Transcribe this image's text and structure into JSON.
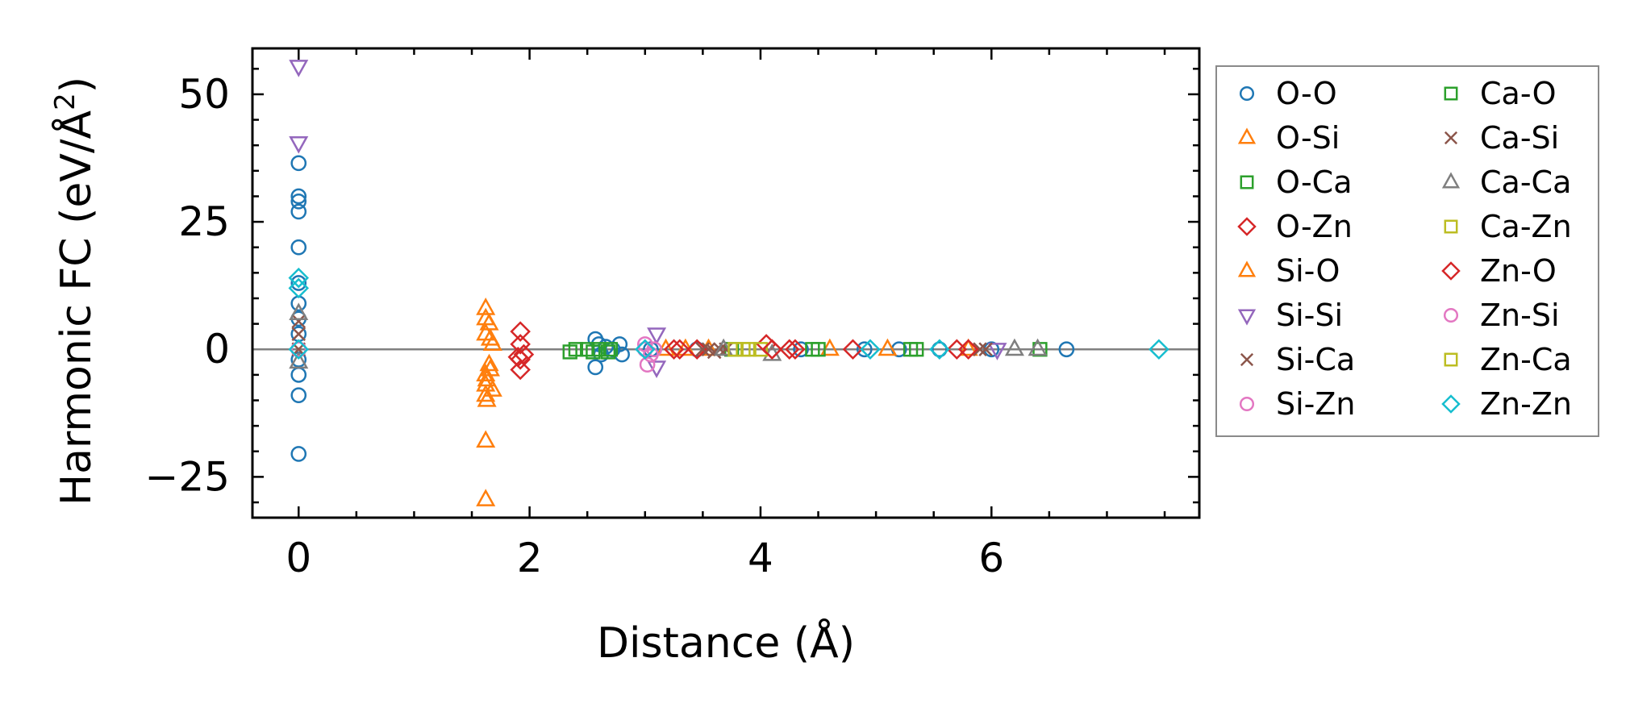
{
  "chart_data": {
    "type": "scatter",
    "xlabel": "Distance (Å)",
    "ylabel_main": "Harmonic FC (eV/Å",
    "ylabel_sup": "2",
    "ylabel_end": ")",
    "xlim": [
      -0.4,
      7.8
    ],
    "ylim": [
      -33,
      59
    ],
    "xticks": [
      0,
      2,
      4,
      6
    ],
    "xtick_labels": [
      "0",
      "2",
      "4",
      "6"
    ],
    "yticks": [
      -25,
      0,
      25,
      50
    ],
    "ytick_labels": [
      "−25",
      "0",
      "25",
      "50"
    ],
    "zero_line": true,
    "legend_position": "outside-right",
    "series": [
      {
        "name": "O-O",
        "marker": "circle",
        "color": "#1f77b4",
        "points": [
          [
            0,
            36.5
          ],
          [
            0,
            30
          ],
          [
            0,
            29
          ],
          [
            0,
            27
          ],
          [
            0,
            20
          ],
          [
            0,
            13
          ],
          [
            0,
            9
          ],
          [
            0,
            6
          ],
          [
            0,
            3
          ],
          [
            0,
            0
          ],
          [
            0,
            -2
          ],
          [
            0,
            -5
          ],
          [
            0,
            -9
          ],
          [
            0,
            -20.5
          ],
          [
            2.57,
            2
          ],
          [
            2.57,
            -3.5
          ],
          [
            2.6,
            1
          ],
          [
            2.62,
            -1
          ],
          [
            2.66,
            0.5
          ],
          [
            2.72,
            0
          ],
          [
            2.78,
            1
          ],
          [
            2.8,
            -1
          ],
          [
            3.05,
            0
          ],
          [
            3.45,
            0
          ],
          [
            4.35,
            0
          ],
          [
            4.9,
            0
          ],
          [
            5.2,
            0
          ],
          [
            5.55,
            0
          ],
          [
            6.0,
            0
          ],
          [
            6.65,
            0
          ]
        ]
      },
      {
        "name": "O-Si",
        "marker": "triangle-up",
        "color": "#ff7f0e",
        "points": [
          [
            1.62,
            8
          ],
          [
            1.62,
            6
          ],
          [
            1.62,
            3
          ],
          [
            1.62,
            -5
          ],
          [
            1.62,
            -7
          ],
          [
            1.62,
            -9
          ],
          [
            1.62,
            -18
          ],
          [
            1.62,
            -29.5
          ],
          [
            1.65,
            5
          ],
          [
            1.65,
            -3
          ],
          [
            1.68,
            1
          ],
          [
            1.68,
            -8
          ],
          [
            3.18,
            0
          ],
          [
            3.35,
            0
          ],
          [
            3.55,
            0
          ],
          [
            4.6,
            0
          ],
          [
            5.1,
            0
          ],
          [
            5.8,
            0
          ]
        ]
      },
      {
        "name": "O-Ca",
        "marker": "square",
        "color": "#2ca02c",
        "points": [
          [
            2.35,
            -0.5
          ],
          [
            2.5,
            0
          ],
          [
            2.6,
            0
          ],
          [
            2.68,
            -0.5
          ],
          [
            3.75,
            0
          ],
          [
            4.5,
            0
          ],
          [
            5.3,
            0
          ]
        ]
      },
      {
        "name": "O-Zn",
        "marker": "diamond",
        "color": "#d62728",
        "points": [
          [
            1.92,
            3.5
          ],
          [
            1.92,
            1
          ],
          [
            1.92,
            -2
          ],
          [
            1.92,
            -4
          ],
          [
            1.95,
            -1
          ],
          [
            3.25,
            0
          ],
          [
            3.45,
            0
          ],
          [
            4.05,
            1
          ],
          [
            4.1,
            0
          ],
          [
            4.25,
            0
          ],
          [
            4.8,
            0
          ],
          [
            5.7,
            0
          ]
        ]
      },
      {
        "name": "Si-O",
        "marker": "triangle-up",
        "color": "#ff7f0e",
        "points": [
          [
            1.63,
            -6
          ],
          [
            1.63,
            -10
          ],
          [
            1.66,
            2
          ],
          [
            1.66,
            -4
          ]
        ]
      },
      {
        "name": "Si-Si",
        "marker": "triangle-down",
        "color": "#9467bd",
        "points": [
          [
            0,
            55.5
          ],
          [
            0,
            40.5
          ],
          [
            3.1,
            3
          ],
          [
            3.1,
            -3.5
          ],
          [
            6.05,
            0
          ]
        ]
      },
      {
        "name": "Si-Ca",
        "marker": "x",
        "color": "#8c564b",
        "points": [
          [
            0,
            3
          ],
          [
            0,
            0
          ],
          [
            3.55,
            0
          ],
          [
            3.65,
            0
          ],
          [
            3.7,
            0
          ],
          [
            5.9,
            0
          ]
        ]
      },
      {
        "name": "Si-Zn",
        "marker": "circle",
        "color": "#e377c2",
        "points": [
          [
            3.0,
            0
          ],
          [
            3.02,
            -3
          ],
          [
            3.08,
            0
          ]
        ]
      },
      {
        "name": "Ca-O",
        "marker": "square",
        "color": "#2ca02c",
        "points": [
          [
            2.4,
            0
          ],
          [
            2.55,
            -0.5
          ],
          [
            2.7,
            0
          ],
          [
            4.45,
            0
          ],
          [
            5.35,
            0
          ],
          [
            6.42,
            0
          ]
        ]
      },
      {
        "name": "Ca-Si",
        "marker": "x",
        "color": "#8c564b",
        "points": [
          [
            0,
            5.5
          ],
          [
            3.5,
            0
          ],
          [
            3.6,
            -0.5
          ],
          [
            5.95,
            0
          ]
        ]
      },
      {
        "name": "Ca-Ca",
        "marker": "triangle-up",
        "color": "#7f7f7f",
        "points": [
          [
            0,
            7
          ],
          [
            0,
            -2.5
          ],
          [
            3.68,
            0
          ],
          [
            4.1,
            -1
          ],
          [
            6.2,
            0
          ],
          [
            6.4,
            0
          ]
        ]
      },
      {
        "name": "Ca-Zn",
        "marker": "square",
        "color": "#bcbd22",
        "points": [
          [
            3.85,
            0
          ],
          [
            4.0,
            0
          ]
        ]
      },
      {
        "name": "Zn-O",
        "marker": "diamond",
        "color": "#d62728",
        "points": [
          [
            1.9,
            -1.5
          ],
          [
            3.3,
            0
          ],
          [
            4.1,
            0
          ],
          [
            4.3,
            0
          ],
          [
            5.8,
            0
          ]
        ]
      },
      {
        "name": "Zn-Si",
        "marker": "circle",
        "color": "#e377c2",
        "points": [
          [
            0,
            0
          ],
          [
            3.0,
            1
          ],
          [
            3.05,
            -1
          ]
        ]
      },
      {
        "name": "Zn-Ca",
        "marker": "square",
        "color": "#bcbd22",
        "points": [
          [
            3.78,
            0
          ],
          [
            3.9,
            0
          ]
        ]
      },
      {
        "name": "Zn-Zn",
        "marker": "diamond",
        "color": "#17becf",
        "points": [
          [
            0,
            14
          ],
          [
            0,
            12
          ],
          [
            0,
            0
          ],
          [
            3.0,
            0
          ],
          [
            4.95,
            0
          ],
          [
            5.55,
            0
          ],
          [
            7.45,
            0
          ]
        ]
      }
    ]
  }
}
